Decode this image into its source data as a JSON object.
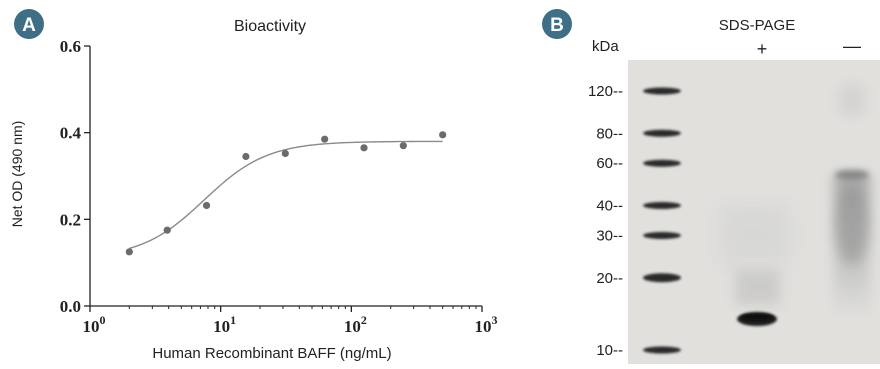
{
  "panel_a": {
    "badge": "A",
    "badge_color": "#3f6f86",
    "chart_data": {
      "type": "scatter",
      "title": "Bioactivity",
      "xlabel": "Human Recombinant BAFF (ng/mL)",
      "ylabel": "Net OD (490 nm)",
      "x_scale": "log",
      "xlim": [
        1,
        1000
      ],
      "ylim": [
        0,
        0.6
      ],
      "x_ticks": [
        {
          "base": "10",
          "exp": "0",
          "value": 1
        },
        {
          "base": "10",
          "exp": "1",
          "value": 10
        },
        {
          "base": "10",
          "exp": "2",
          "value": 100
        },
        {
          "base": "10",
          "exp": "3",
          "value": 1000
        }
      ],
      "y_ticks": [
        {
          "label": "0.0",
          "value": 0
        },
        {
          "label": "0.2",
          "value": 0.2
        },
        {
          "label": "0.4",
          "value": 0.4
        },
        {
          "label": "0.6",
          "value": 0.6
        }
      ],
      "series": [
        {
          "x": [
            2,
            3.9,
            7.8,
            15.6,
            31.25,
            62.5,
            125,
            250,
            500
          ],
          "y": [
            0.125,
            0.175,
            0.232,
            0.345,
            0.352,
            0.385,
            0.365,
            0.37,
            0.395
          ],
          "marker_color": "#6b6b6b"
        }
      ],
      "fit_curve": {
        "type": "4PL",
        "bottom": 0.11,
        "top": 0.38,
        "ec50": 7.5,
        "hill": 1.8,
        "x_range": [
          2,
          500
        ],
        "color": "#8a8a8a"
      },
      "grid": false,
      "legend": "none"
    }
  },
  "panel_b": {
    "badge": "B",
    "badge_color": "#3f6f86",
    "title": "SDS-PAGE",
    "unit_label": "kDa",
    "lane_labels": [
      "+",
      "—"
    ],
    "markers": [
      {
        "label": "120--",
        "kda": 120
      },
      {
        "label": "80--",
        "kda": 80
      },
      {
        "label": "60--",
        "kda": 60
      },
      {
        "label": "40--",
        "kda": 40
      },
      {
        "label": "30--",
        "kda": 30
      },
      {
        "label": "20--",
        "kda": 20
      },
      {
        "label": "10--",
        "kda": 10
      }
    ],
    "gel_color": "#e5e3e0"
  }
}
